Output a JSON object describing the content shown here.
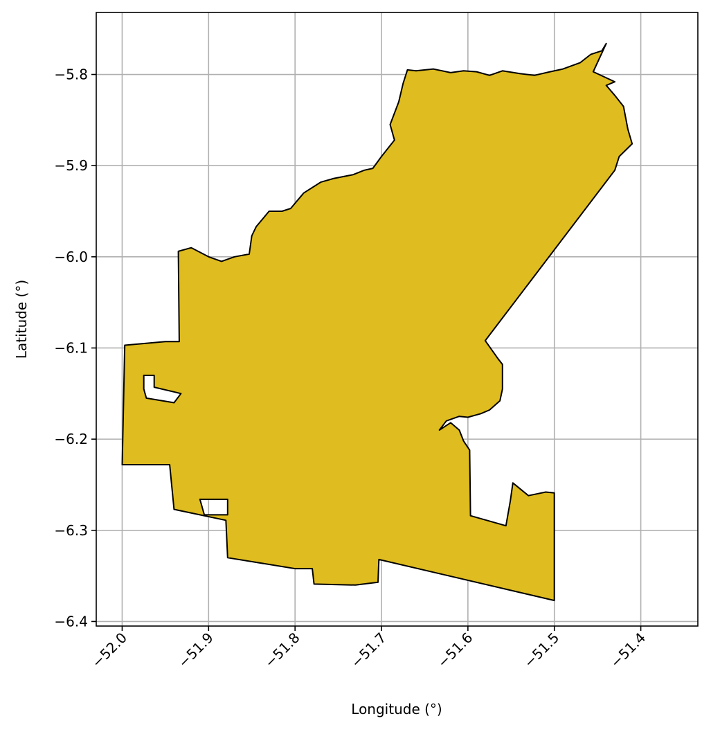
{
  "chart_data": {
    "type": "map",
    "xlabel": "Longitude (°)",
    "ylabel": "Latitude (°)",
    "xlim": [
      -52.03,
      -51.334
    ],
    "ylim": [
      -6.405,
      -5.732
    ],
    "xticks": [
      -52.0,
      -51.9,
      -51.8,
      -51.7,
      -51.6,
      -51.5,
      -51.4
    ],
    "xtick_labels": [
      "−52.0",
      "−51.9",
      "−51.8",
      "−51.7",
      "−51.6",
      "−51.5",
      "−51.4"
    ],
    "yticks": [
      -5.8,
      -5.9,
      -6.0,
      -6.1,
      -6.2,
      -6.3,
      -6.4
    ],
    "ytick_labels": [
      "−5.8",
      "−5.9",
      "−6.0",
      "−6.1",
      "−6.2",
      "−6.3",
      "−6.4"
    ],
    "grid": true,
    "fill_color": "#dfbc1f",
    "edge_color": "#000000",
    "region": {
      "outer": [
        [
          -51.44,
          -5.766
        ],
        [
          -51.445,
          -5.774
        ],
        [
          -51.458,
          -5.778
        ],
        [
          -51.47,
          -5.787
        ],
        [
          -51.49,
          -5.794
        ],
        [
          -51.505,
          -5.797
        ],
        [
          -51.523,
          -5.801
        ],
        [
          -51.54,
          -5.799
        ],
        [
          -51.56,
          -5.796
        ],
        [
          -51.575,
          -5.801
        ],
        [
          -51.59,
          -5.797
        ],
        [
          -51.605,
          -5.796
        ],
        [
          -51.62,
          -5.798
        ],
        [
          -51.64,
          -5.794
        ],
        [
          -51.66,
          -5.796
        ],
        [
          -51.67,
          -5.795
        ],
        [
          -51.675,
          -5.81
        ],
        [
          -51.68,
          -5.83
        ],
        [
          -51.69,
          -5.855
        ],
        [
          -51.685,
          -5.872
        ],
        [
          -51.7,
          -5.89
        ],
        [
          -51.71,
          -5.903
        ],
        [
          -51.72,
          -5.905
        ],
        [
          -51.733,
          -5.91
        ],
        [
          -51.755,
          -5.914
        ],
        [
          -51.77,
          -5.918
        ],
        [
          -51.79,
          -5.93
        ],
        [
          -51.805,
          -5.947
        ],
        [
          -51.815,
          -5.95
        ],
        [
          -51.83,
          -5.95
        ],
        [
          -51.845,
          -5.967
        ],
        [
          -51.85,
          -5.977
        ],
        [
          -51.853,
          -5.997
        ],
        [
          -51.87,
          -6.0
        ],
        [
          -51.885,
          -6.005
        ],
        [
          -51.9,
          -6.0
        ],
        [
          -51.92,
          -5.99
        ],
        [
          -51.935,
          -5.994
        ],
        [
          -51.934,
          -6.093
        ],
        [
          -51.95,
          -6.093
        ],
        [
          -51.997,
          -6.097
        ],
        [
          -52.0,
          -6.228
        ],
        [
          -51.945,
          -6.228
        ],
        [
          -51.94,
          -6.277
        ],
        [
          -51.88,
          -6.289
        ],
        [
          -51.878,
          -6.33
        ],
        [
          -51.8,
          -6.342
        ],
        [
          -51.78,
          -6.342
        ],
        [
          -51.778,
          -6.359
        ],
        [
          -51.73,
          -6.36
        ],
        [
          -51.704,
          -6.357
        ],
        [
          -51.703,
          -6.332
        ],
        [
          -51.5,
          -6.377
        ],
        [
          -51.5,
          -6.259
        ],
        [
          -51.51,
          -6.258
        ],
        [
          -51.53,
          -6.262
        ],
        [
          -51.548,
          -6.248
        ],
        [
          -51.551,
          -6.268
        ],
        [
          -51.556,
          -6.295
        ],
        [
          -51.597,
          -6.284
        ],
        [
          -51.598,
          -6.212
        ],
        [
          -51.605,
          -6.202
        ],
        [
          -51.61,
          -6.19
        ],
        [
          -51.62,
          -6.182
        ],
        [
          -51.633,
          -6.19
        ],
        [
          -51.625,
          -6.18
        ],
        [
          -51.61,
          -6.175
        ],
        [
          -51.6,
          -6.176
        ],
        [
          -51.585,
          -6.172
        ],
        [
          -51.575,
          -6.168
        ],
        [
          -51.563,
          -6.158
        ],
        [
          -51.56,
          -6.145
        ],
        [
          -51.56,
          -6.13
        ],
        [
          -51.56,
          -6.118
        ],
        [
          -51.565,
          -6.112
        ],
        [
          -51.58,
          -6.092
        ],
        [
          -51.43,
          -5.905
        ],
        [
          -51.425,
          -5.89
        ],
        [
          -51.41,
          -5.876
        ],
        [
          -51.415,
          -5.86
        ],
        [
          -51.42,
          -5.835
        ],
        [
          -51.43,
          -5.823
        ],
        [
          -51.44,
          -5.812
        ],
        [
          -51.43,
          -5.808
        ],
        [
          -51.455,
          -5.797
        ]
      ],
      "holes": [
        [
          [
            -51.975,
            -6.13
          ],
          [
            -51.963,
            -6.13
          ],
          [
            -51.963,
            -6.143
          ],
          [
            -51.932,
            -6.15
          ],
          [
            -51.94,
            -6.16
          ],
          [
            -51.972,
            -6.155
          ],
          [
            -51.975,
            -6.145
          ]
        ],
        [
          [
            -51.91,
            -6.266
          ],
          [
            -51.878,
            -6.266
          ],
          [
            -51.878,
            -6.283
          ],
          [
            -51.905,
            -6.283
          ]
        ]
      ]
    }
  }
}
